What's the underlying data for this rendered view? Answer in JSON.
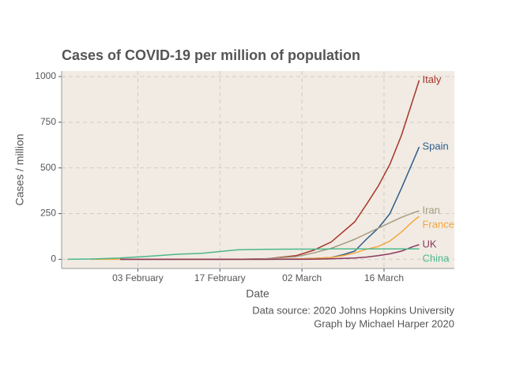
{
  "chart_data": {
    "type": "line",
    "title": "Cases of COVID-19 per million of population",
    "x_label": "Date",
    "y_label": "Cases / million",
    "caption": [
      "Data source: 2020 Johns Hopkins University",
      "Graph by Michael Harper 2020"
    ],
    "x": [
      "01-22",
      "01-26",
      "01-31",
      "02-05",
      "02-10",
      "02-14",
      "02-20",
      "02-25",
      "03-01",
      "03-04",
      "03-07",
      "03-09",
      "03-11",
      "03-13",
      "03-15",
      "03-17",
      "03-19",
      "03-21",
      "03-22"
    ],
    "xlim": [
      "01-21",
      "03-28"
    ],
    "xticks": [
      {
        "value": "02-03",
        "label": "03 February"
      },
      {
        "value": "02-17",
        "label": "17 February"
      },
      {
        "value": "03-02",
        "label": "02 March"
      },
      {
        "value": "03-16",
        "label": "16 March"
      }
    ],
    "ylim": [
      -50,
      1030
    ],
    "yticks": [
      0,
      250,
      500,
      750,
      1000
    ],
    "grid": true,
    "series": [
      {
        "name": "Italy",
        "color": "#a63325",
        "values": [
          null,
          null,
          0,
          0,
          0,
          0,
          0,
          3,
          20,
          50,
          95,
          150,
          205,
          300,
          400,
          520,
          680,
          880,
          980
        ]
      },
      {
        "name": "Spain",
        "color": "#2f5d8a",
        "values": [
          null,
          null,
          0,
          0,
          0,
          0,
          0,
          0,
          2,
          5,
          10,
          25,
          45,
          110,
          170,
          250,
          390,
          540,
          615
        ]
      },
      {
        "name": "Iran",
        "color": "#a59a7f",
        "values": [
          null,
          null,
          null,
          null,
          null,
          null,
          0,
          3,
          15,
          35,
          60,
          85,
          110,
          140,
          170,
          200,
          230,
          255,
          265
        ]
      },
      {
        "name": "France",
        "color": "#f3a63d",
        "values": [
          null,
          0,
          0,
          0,
          0,
          0,
          0,
          0,
          2,
          5,
          10,
          20,
          35,
          55,
          70,
          100,
          150,
          210,
          235
        ]
      },
      {
        "name": "UK",
        "color": "#8a3a5c",
        "values": [
          null,
          null,
          0,
          0,
          0,
          0,
          0,
          0,
          0,
          1,
          3,
          5,
          7,
          12,
          20,
          30,
          45,
          70,
          80
        ]
      },
      {
        "name": "China",
        "color": "#4db88d",
        "values": [
          0,
          2,
          7,
          17,
          28,
          33,
          52,
          55,
          56,
          56,
          57,
          57,
          57,
          57,
          57,
          57,
          57,
          57,
          57
        ]
      }
    ]
  }
}
